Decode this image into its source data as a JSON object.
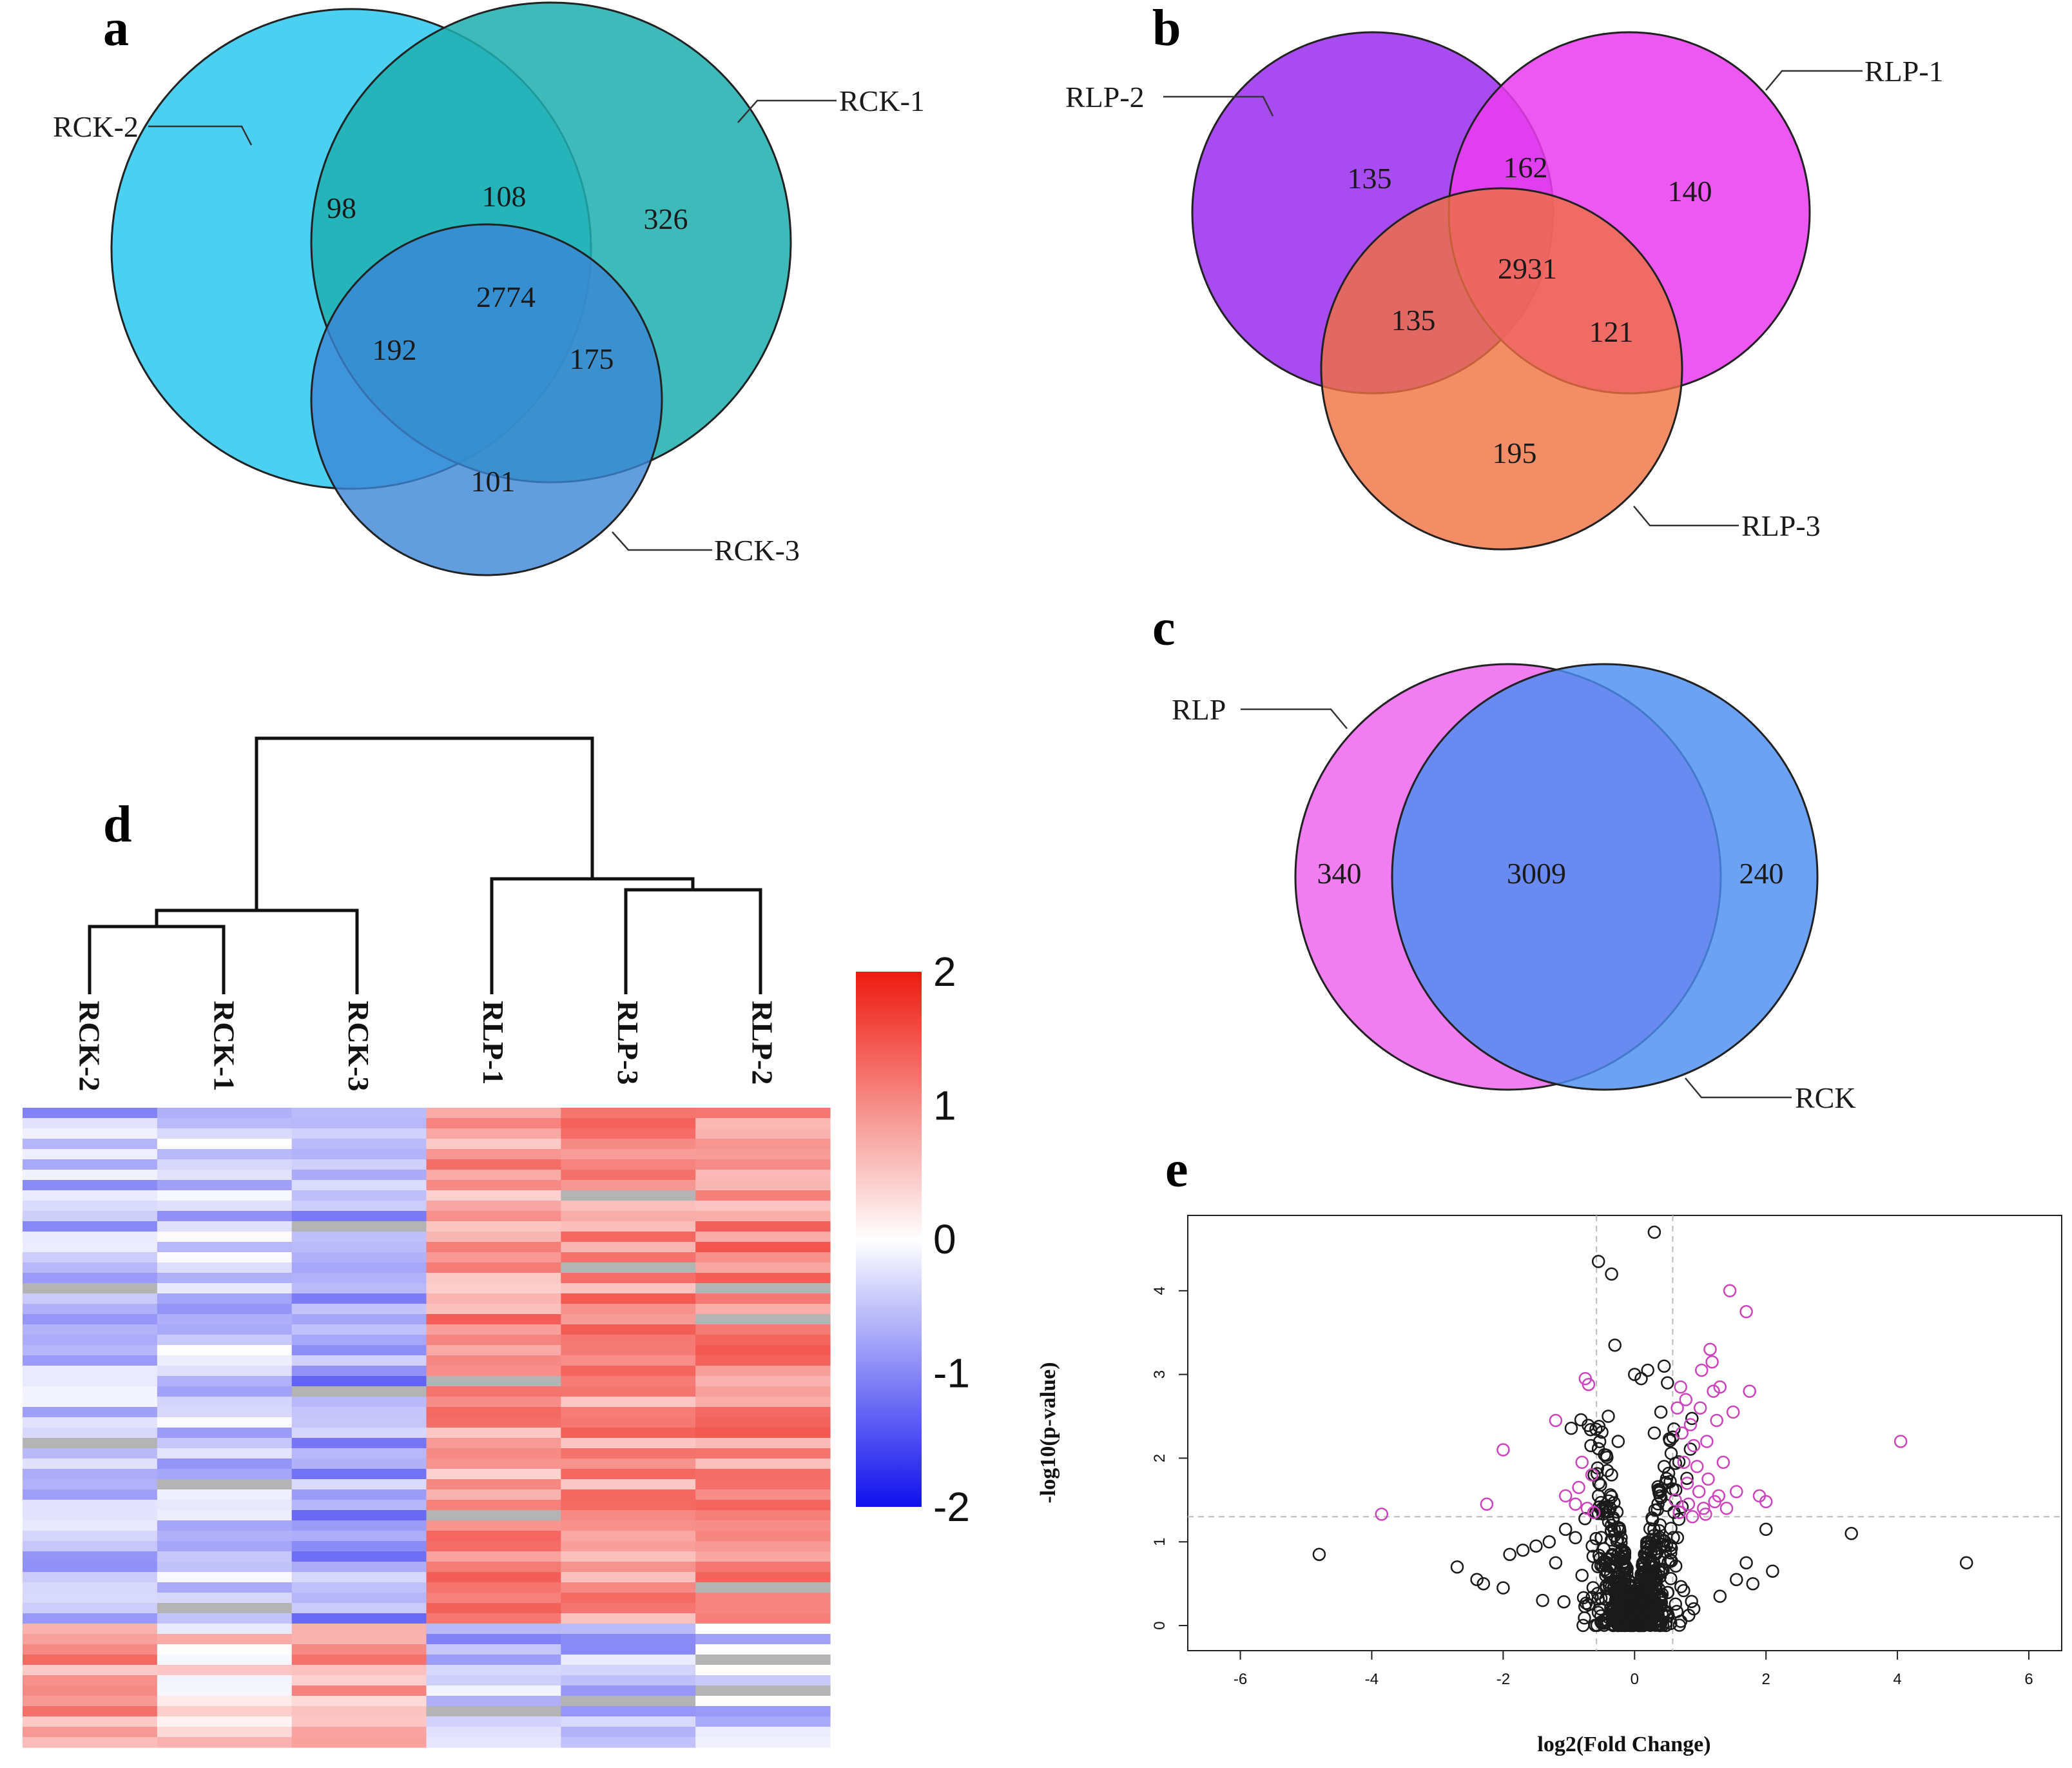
{
  "panels": {
    "a": {
      "letter": "a",
      "type": "venn3",
      "sets": [
        "RCK-2",
        "RCK-1",
        "RCK-3"
      ],
      "colors": [
        "#2ec8ef",
        "#1fafb0",
        "#3b86d6"
      ],
      "regions": {
        "only_rck2": "98",
        "rck2_rck1": "108",
        "only_rck1": "326",
        "all_three": "2774",
        "rck2_rck3": "192",
        "rck1_rck3": "175",
        "only_rck3": "101"
      }
    },
    "b": {
      "letter": "b",
      "type": "venn3",
      "sets": [
        "RLP-2",
        "RLP-1",
        "RLP-3"
      ],
      "colors": [
        "#9a2ef0",
        "#ea3cf0",
        "#f0703e"
      ],
      "regions": {
        "only_rlp2": "135",
        "rlp2_rlp1": "162",
        "only_rlp1": "140",
        "all_three": "2931",
        "rlp2_rlp3": "135",
        "rlp1_rlp3": "121",
        "only_rlp3": "195"
      }
    },
    "c": {
      "letter": "c",
      "type": "venn2",
      "sets": [
        "RLP",
        "RCK"
      ],
      "colors": [
        "#f070f0",
        "#4a8ef0"
      ],
      "regions": {
        "only_rlp": "340",
        "both": "3009",
        "only_rck": "240"
      }
    },
    "d": {
      "letter": "d",
      "type": "heatmap",
      "columns": [
        "RCK-2",
        "RCK-1",
        "RCK-3",
        "RLP-1",
        "RLP-3",
        "RLP-2"
      ],
      "colorbar": {
        "min": -2,
        "max": 2,
        "ticks": [
          "2",
          "1",
          "0",
          "-1",
          "-2"
        ],
        "low": "#1010ee",
        "mid": "#ffffff",
        "high": "#ee1a10"
      },
      "n_rows": 62,
      "missing_color": "#b4b4b4",
      "column_means": [
        -0.55,
        -0.45,
        -0.8,
        0.9,
        0.95,
        1.0
      ],
      "bottom_cluster_means": [
        0.85,
        0.25,
        0.75,
        -0.6,
        -0.5,
        -0.4
      ]
    },
    "e": {
      "letter": "e"
    }
  },
  "chart_data": {
    "type": "scatter",
    "title": "",
    "xlabel": "log2(Fold Change)",
    "ylabel": "-log10(p-value)",
    "xlim": [
      -6.8,
      6.5
    ],
    "ylim": [
      -0.3,
      4.9
    ],
    "xticks": [
      -6,
      -4,
      -2,
      0,
      2,
      4,
      6
    ],
    "yticks": [
      0,
      1,
      2,
      3,
      4
    ],
    "thresholds": {
      "fold_change": [
        -0.58,
        0.58
      ],
      "p_value": 1.3
    },
    "series": [
      {
        "name": "significant",
        "color": "#cc44bb",
        "points": [
          [
            -3.85,
            1.33
          ],
          [
            -2.25,
            1.45
          ],
          [
            -2.0,
            2.1
          ],
          [
            -1.2,
            2.45
          ],
          [
            -1.05,
            1.55
          ],
          [
            -0.75,
            2.95
          ],
          [
            -0.7,
            2.88
          ],
          [
            -0.85,
            1.65
          ],
          [
            -0.8,
            1.95
          ],
          [
            -0.72,
            1.4
          ],
          [
            -0.65,
            1.8
          ],
          [
            0.62,
            1.5
          ],
          [
            0.65,
            2.6
          ],
          [
            0.7,
            2.85
          ],
          [
            0.72,
            2.3
          ],
          [
            0.75,
            1.95
          ],
          [
            0.8,
            1.7
          ],
          [
            0.82,
            1.45
          ],
          [
            0.85,
            2.4
          ],
          [
            0.9,
            2.15
          ],
          [
            0.95,
            1.9
          ],
          [
            0.98,
            1.6
          ],
          [
            1.0,
            2.6
          ],
          [
            1.02,
            3.05
          ],
          [
            1.05,
            1.4
          ],
          [
            1.1,
            2.2
          ],
          [
            1.12,
            1.75
          ],
          [
            1.15,
            3.3
          ],
          [
            1.18,
            3.15
          ],
          [
            1.2,
            2.8
          ],
          [
            1.25,
            2.45
          ],
          [
            1.28,
            1.55
          ],
          [
            1.3,
            2.85
          ],
          [
            1.35,
            1.95
          ],
          [
            1.4,
            1.4
          ],
          [
            1.45,
            4.0
          ],
          [
            1.5,
            2.55
          ],
          [
            1.55,
            1.6
          ],
          [
            1.7,
            3.75
          ],
          [
            1.75,
            2.8
          ],
          [
            1.9,
            1.55
          ],
          [
            2.0,
            1.48
          ],
          [
            4.05,
            2.2
          ],
          [
            0.68,
            1.35
          ],
          [
            0.88,
            1.3
          ],
          [
            1.08,
            1.33
          ],
          [
            -0.62,
            1.35
          ],
          [
            -0.9,
            1.45
          ],
          [
            1.22,
            1.48
          ],
          [
            0.78,
            2.7
          ]
        ]
      },
      {
        "name": "not_significant",
        "color": "#1a1a1a",
        "points": [
          [
            -4.8,
            0.85
          ],
          [
            -2.7,
            0.7
          ],
          [
            -2.4,
            0.55
          ],
          [
            -2.3,
            0.5
          ],
          [
            -1.9,
            0.85
          ],
          [
            -1.7,
            0.9
          ],
          [
            -1.5,
            0.95
          ],
          [
            -1.3,
            1.0
          ],
          [
            -1.2,
            0.75
          ],
          [
            -1.05,
            1.15
          ],
          [
            -0.9,
            1.05
          ],
          [
            -0.8,
            0.6
          ],
          [
            -0.55,
            4.35
          ],
          [
            -0.35,
            4.2
          ],
          [
            -0.3,
            3.35
          ],
          [
            0.0,
            3.0
          ],
          [
            0.1,
            2.95
          ],
          [
            0.2,
            3.05
          ],
          [
            0.3,
            4.7
          ],
          [
            0.45,
            3.1
          ],
          [
            0.5,
            2.9
          ],
          [
            1.7,
            0.75
          ],
          [
            2.0,
            1.15
          ],
          [
            2.1,
            0.65
          ],
          [
            1.8,
            0.5
          ],
          [
            1.55,
            0.55
          ],
          [
            3.3,
            1.1
          ],
          [
            5.05,
            0.75
          ],
          [
            -2.0,
            0.45
          ],
          [
            -1.4,
            0.3
          ],
          [
            1.3,
            0.35
          ],
          [
            0.9,
            0.2
          ],
          [
            -0.7,
            0.25
          ],
          [
            -0.4,
            2.5
          ],
          [
            0.4,
            2.55
          ],
          [
            -0.25,
            2.2
          ],
          [
            0.3,
            2.3
          ],
          [
            -0.35,
            1.8
          ],
          [
            0.45,
            1.9
          ]
        ]
      }
    ]
  }
}
